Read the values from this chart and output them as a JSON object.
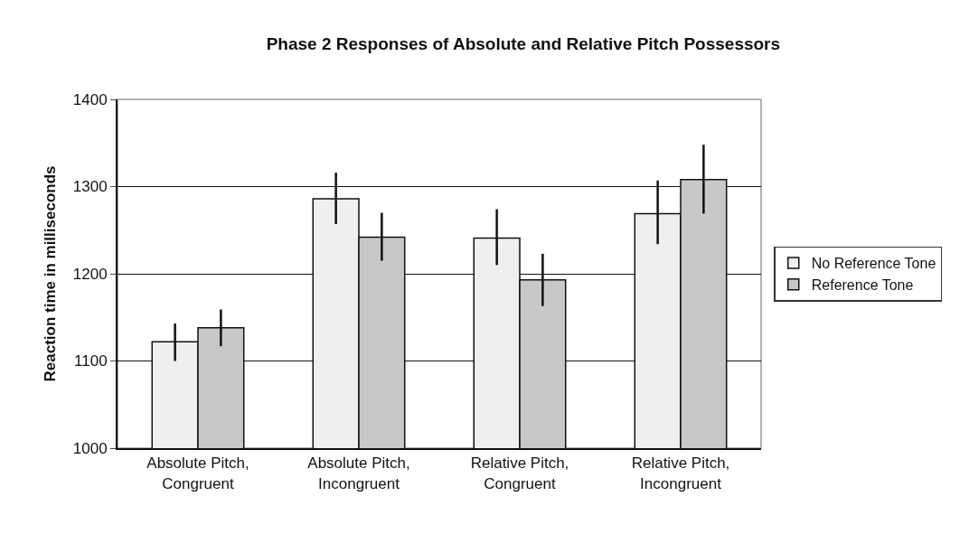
{
  "chart_data": {
    "type": "bar",
    "title": "Phase 2 Responses of Absolute and Relative Pitch Possessors",
    "ylabel": "Reaction time in milliseconds",
    "categories": [
      "Absolute Pitch,\nCongruent",
      "Absolute Pitch,\nIncongruent",
      "Relative Pitch,\nCongruent",
      "Relative Pitch,\nIncongruent"
    ],
    "series": [
      {
        "name": "No Reference Tone",
        "color": "#efefef",
        "values": [
          1122,
          1286,
          1241,
          1269
        ],
        "errors": [
          [
            1100,
            1143
          ],
          [
            1257,
            1316
          ],
          [
            1210,
            1274
          ],
          [
            1234,
            1307
          ]
        ]
      },
      {
        "name": "Reference Tone",
        "color": "#c8c8c8",
        "values": [
          1138,
          1242,
          1193,
          1308
        ],
        "errors": [
          [
            1117,
            1159
          ],
          [
            1215,
            1270
          ],
          [
            1163,
            1223
          ],
          [
            1269,
            1348
          ]
        ]
      }
    ],
    "ylim": [
      1000,
      1400
    ],
    "yticks": [
      1000,
      1100,
      1200,
      1300,
      1400
    ],
    "grid": "y",
    "legend": "right"
  }
}
